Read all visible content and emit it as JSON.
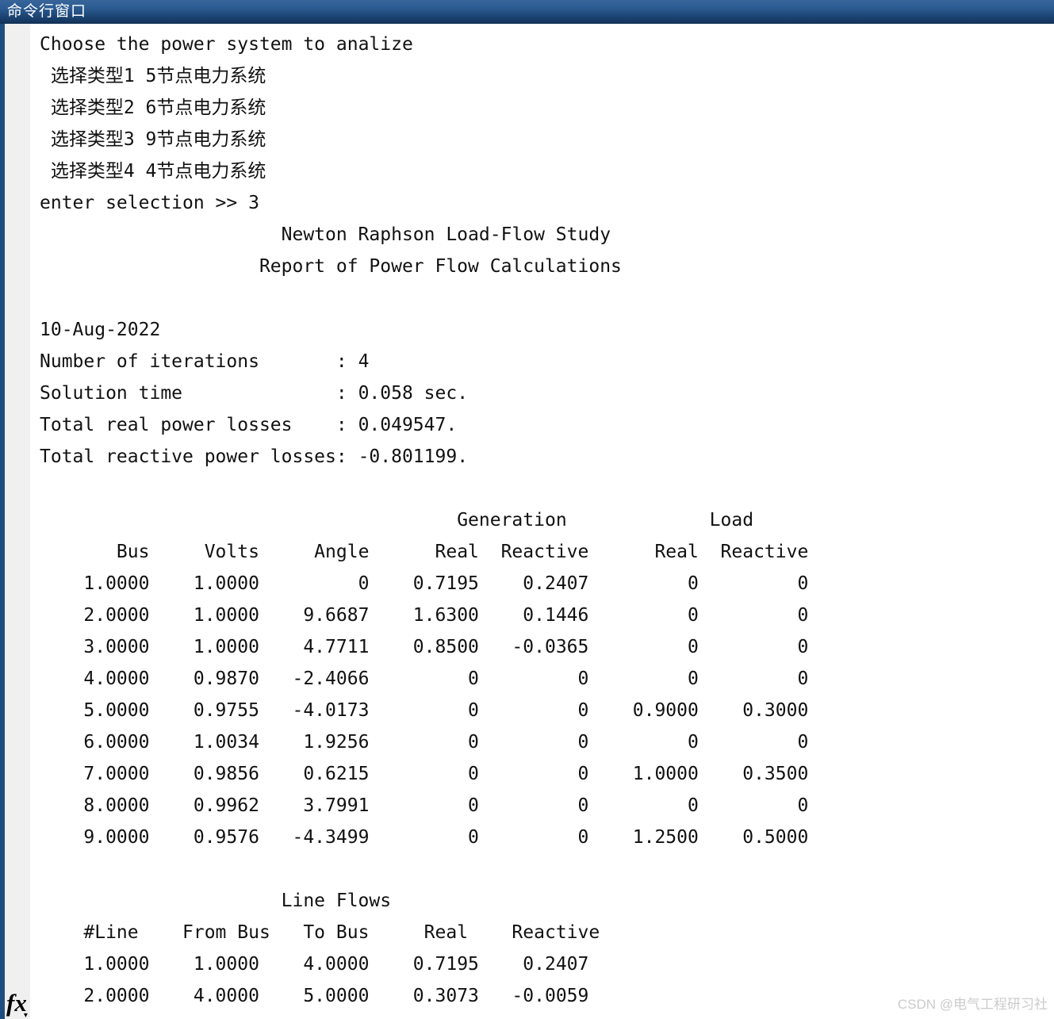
{
  "window": {
    "title": "命令行窗口"
  },
  "icons": {
    "fx": "fx",
    "caret_down": "▾"
  },
  "colors": {
    "titlebar_top": "#38659a",
    "titlebar_bottom": "#123156",
    "left_edge": "#1e4e7f",
    "gutter": "#f0f0f0",
    "text": "#111111",
    "watermark": "#cbcbcb"
  },
  "console": {
    "intro_line": "Choose the power system to analize",
    "menu_options": [
      "选择类型1 5节点电力系统",
      "选择类型2 6节点电力系统",
      "选择类型3 9节点电力系统",
      "选择类型4 4节点电力系统"
    ],
    "prompt_line": "enter selection >> 3",
    "report": {
      "title": "Newton Raphson Load-Flow Study",
      "subtitle": "Report of Power Flow Calculations",
      "date": "10-Aug-2022",
      "stats": [
        {
          "label": "Number of iterations",
          "value": "4"
        },
        {
          "label": "Solution time",
          "value": "0.058 sec."
        },
        {
          "label": "Total real power losses",
          "value": "0.049547."
        },
        {
          "label": "Total reactive power losses",
          "value": "-0.801199."
        }
      ]
    },
    "bus_table": {
      "group_header": {
        "generation": "Generation",
        "load": "Load"
      },
      "columns": [
        "Bus",
        "Volts",
        "Angle",
        "Real",
        "Reactive",
        "Real",
        "Reactive"
      ],
      "rows": [
        [
          "1.0000",
          "1.0000",
          "0",
          "0.7195",
          "0.2407",
          "0",
          "0"
        ],
        [
          "2.0000",
          "1.0000",
          "9.6687",
          "1.6300",
          "0.1446",
          "0",
          "0"
        ],
        [
          "3.0000",
          "1.0000",
          "4.7711",
          "0.8500",
          "-0.0365",
          "0",
          "0"
        ],
        [
          "4.0000",
          "0.9870",
          "-2.4066",
          "0",
          "0",
          "0",
          "0"
        ],
        [
          "5.0000",
          "0.9755",
          "-4.0173",
          "0",
          "0",
          "0.9000",
          "0.3000"
        ],
        [
          "6.0000",
          "1.0034",
          "1.9256",
          "0",
          "0",
          "0",
          "0"
        ],
        [
          "7.0000",
          "0.9856",
          "0.6215",
          "0",
          "0",
          "1.0000",
          "0.3500"
        ],
        [
          "8.0000",
          "0.9962",
          "3.7991",
          "0",
          "0",
          "0",
          "0"
        ],
        [
          "9.0000",
          "0.9576",
          "-4.3499",
          "0",
          "0",
          "1.2500",
          "0.5000"
        ]
      ]
    },
    "line_flows": {
      "title": "Line Flows",
      "columns": [
        "#Line",
        "From Bus",
        "To Bus",
        "Real",
        "Reactive"
      ],
      "rows": [
        [
          "1.0000",
          "1.0000",
          "4.0000",
          "0.7195",
          "0.2407"
        ],
        [
          "2.0000",
          "4.0000",
          "5.0000",
          "0.3073",
          "-0.0059"
        ]
      ]
    }
  },
  "watermark": "CSDN @电气工程研习社"
}
